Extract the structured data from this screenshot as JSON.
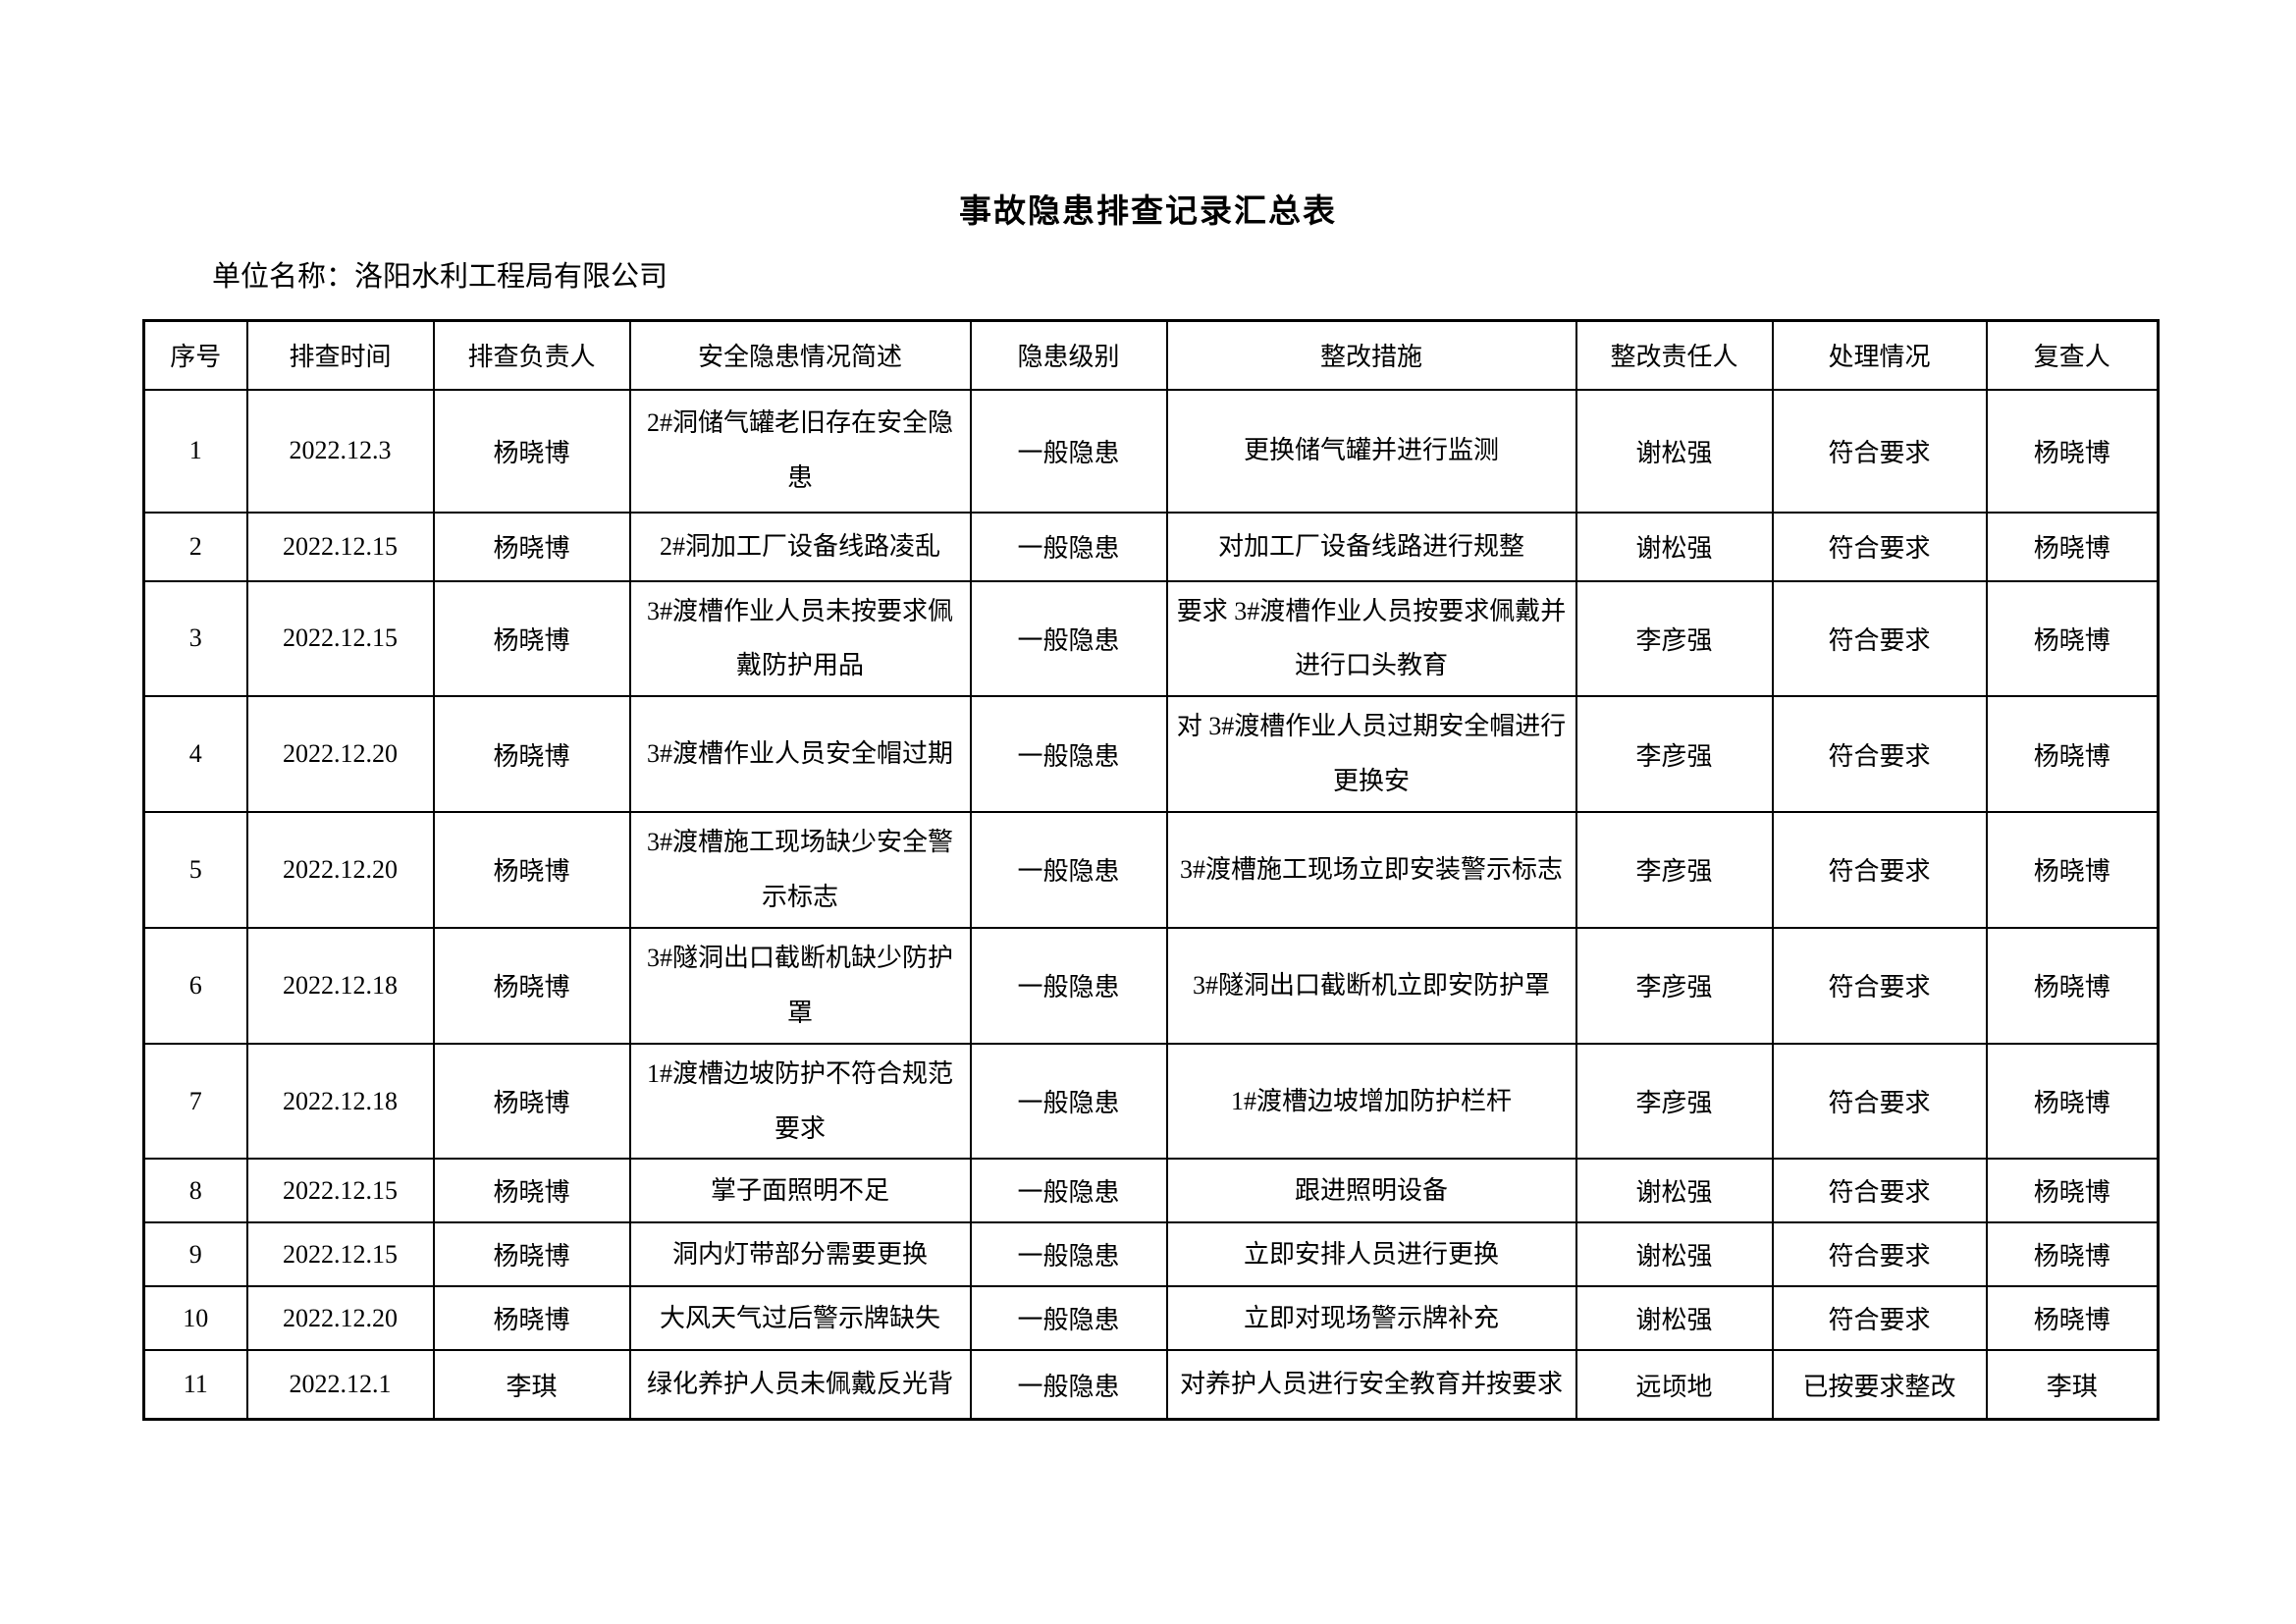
{
  "page": {
    "title": "事故隐患排查记录汇总表",
    "unit_label": "单位名称：洛阳水利工程局有限公司"
  },
  "table": {
    "headers": [
      "序号",
      "排查时间",
      "排查负责人",
      "安全隐患情况简述",
      "隐患级别",
      "整改措施",
      "整改责任人",
      "处理情况",
      "复查人"
    ],
    "rows": [
      [
        "1",
        "2022.12.3",
        "杨晓博",
        "2#洞储气罐老旧存在安全隐患",
        "一般隐患",
        "更换储气罐并进行监测",
        "谢松强",
        "符合要求",
        "杨晓博"
      ],
      [
        "2",
        "2022.12.15",
        "杨晓博",
        "2#洞加工厂设备线路凌乱",
        "一般隐患",
        "对加工厂设备线路进行规整",
        "谢松强",
        "符合要求",
        "杨晓博"
      ],
      [
        "3",
        "2022.12.15",
        "杨晓博",
        "3#渡槽作业人员未按要求佩戴防护用品",
        "一般隐患",
        "要求 3#渡槽作业人员按要求佩戴并进行口头教育",
        "李彦强",
        "符合要求",
        "杨晓博"
      ],
      [
        "4",
        "2022.12.20",
        "杨晓博",
        "3#渡槽作业人员安全帽过期",
        "一般隐患",
        "对 3#渡槽作业人员过期安全帽进行更换安",
        "李彦强",
        "符合要求",
        "杨晓博"
      ],
      [
        "5",
        "2022.12.20",
        "杨晓博",
        "3#渡槽施工现场缺少安全警示标志",
        "一般隐患",
        "3#渡槽施工现场立即安装警示标志",
        "李彦强",
        "符合要求",
        "杨晓博"
      ],
      [
        "6",
        "2022.12.18",
        "杨晓博",
        "3#隧洞出口截断机缺少防护罩",
        "一般隐患",
        "3#隧洞出口截断机立即安防护罩",
        "李彦强",
        "符合要求",
        "杨晓博"
      ],
      [
        "7",
        "2022.12.18",
        "杨晓博",
        "1#渡槽边坡防护不符合规范要求",
        "一般隐患",
        "1#渡槽边坡增加防护栏杆",
        "李彦强",
        "符合要求",
        "杨晓博"
      ],
      [
        "8",
        "2022.12.15",
        "杨晓博",
        "掌子面照明不足",
        "一般隐患",
        "跟进照明设备",
        "谢松强",
        "符合要求",
        "杨晓博"
      ],
      [
        "9",
        "2022.12.15",
        "杨晓博",
        "洞内灯带部分需要更换",
        "一般隐患",
        "立即安排人员进行更换",
        "谢松强",
        "符合要求",
        "杨晓博"
      ],
      [
        "10",
        "2022.12.20",
        "杨晓博",
        "大风天气过后警示牌缺失",
        "一般隐患",
        "立即对现场警示牌补充",
        "谢松强",
        "符合要求",
        "杨晓博"
      ],
      [
        "11",
        "2022.12.1",
        "李琪",
        "绿化养护人员未佩戴反光背",
        "一般隐患",
        "对养护人员进行安全教育并按要求",
        "远顷地",
        "已按要求整改",
        "李琪"
      ]
    ]
  }
}
